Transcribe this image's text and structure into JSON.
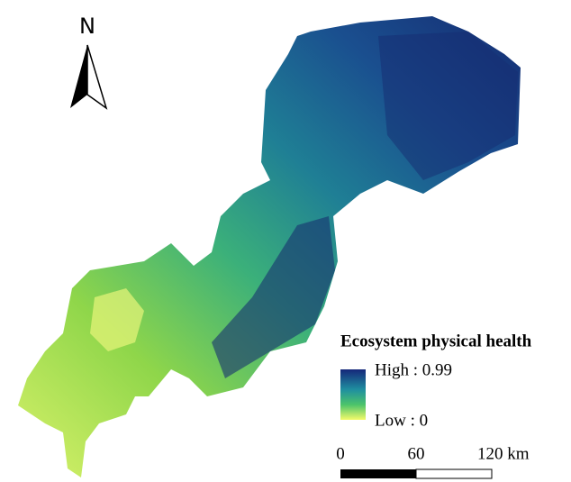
{
  "north_arrow": {
    "label": "N"
  },
  "legend": {
    "title": "Ecosystem physical health",
    "high_label": "High : 0.99",
    "low_label": "Low : 0"
  },
  "scale_bar": {
    "labels": [
      "0",
      "60",
      "120 km"
    ]
  }
}
